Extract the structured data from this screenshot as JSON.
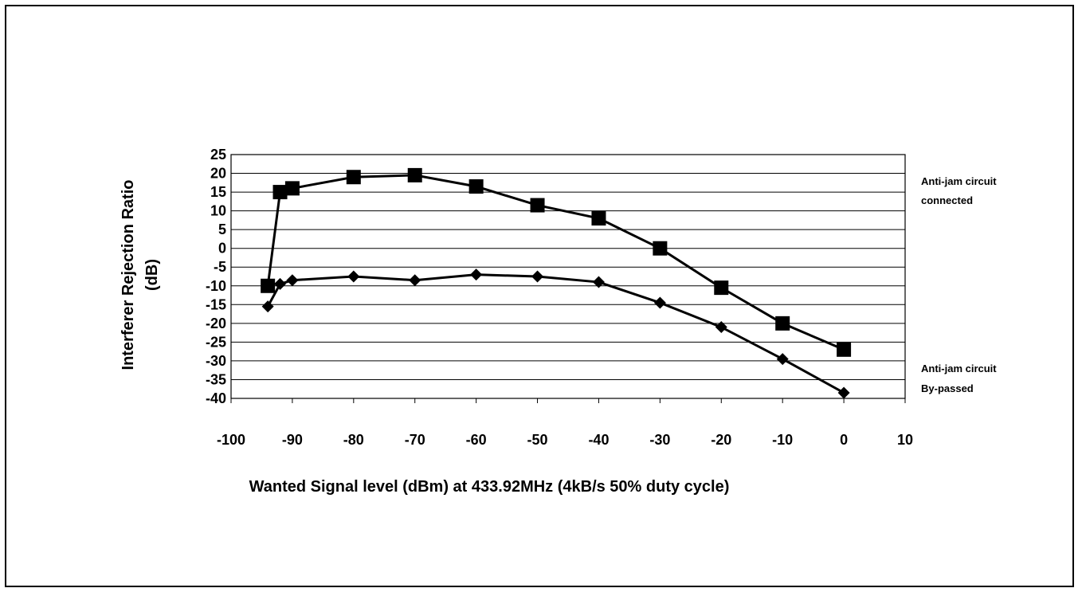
{
  "chart_data": {
    "type": "line",
    "title": "",
    "xlabel": "Wanted Signal level (dBm) at 433.92MHz (4kB/s 50% duty cycle)",
    "ylabel_lines": [
      "Interferer Rejection Ratio",
      "(dB)"
    ],
    "xlim": [
      -100,
      10
    ],
    "ylim": [
      -40,
      25
    ],
    "x_ticks": [
      -100,
      -90,
      -80,
      -70,
      -60,
      -50,
      -40,
      -30,
      -20,
      -10,
      0,
      10
    ],
    "y_ticks": [
      25,
      20,
      15,
      10,
      5,
      0,
      -5,
      -10,
      -15,
      -20,
      -25,
      -30,
      -35,
      -40
    ],
    "grid": "horizontal",
    "legend_position": "right",
    "series": [
      {
        "name_lines": [
          "Anti-jam circuit",
          "connected"
        ],
        "marker": "square",
        "x": [
          -94,
          -92,
          -90,
          -80,
          -70,
          -60,
          -50,
          -40,
          -30,
          -20,
          -10,
          0
        ],
        "y": [
          -10,
          15,
          16,
          19,
          19.5,
          16.5,
          11.5,
          8,
          0,
          -10.5,
          -20,
          -27
        ]
      },
      {
        "name_lines": [
          "Anti-jam circuit",
          "By-passed"
        ],
        "marker": "diamond",
        "x": [
          -94,
          -92,
          -90,
          -80,
          -70,
          -60,
          -50,
          -40,
          -30,
          -20,
          -10,
          0
        ],
        "y": [
          -15.5,
          -9.5,
          -8.5,
          -7.5,
          -8.5,
          -7,
          -7.5,
          -9,
          -14.5,
          -21,
          -29.5,
          -38.5
        ]
      }
    ]
  }
}
